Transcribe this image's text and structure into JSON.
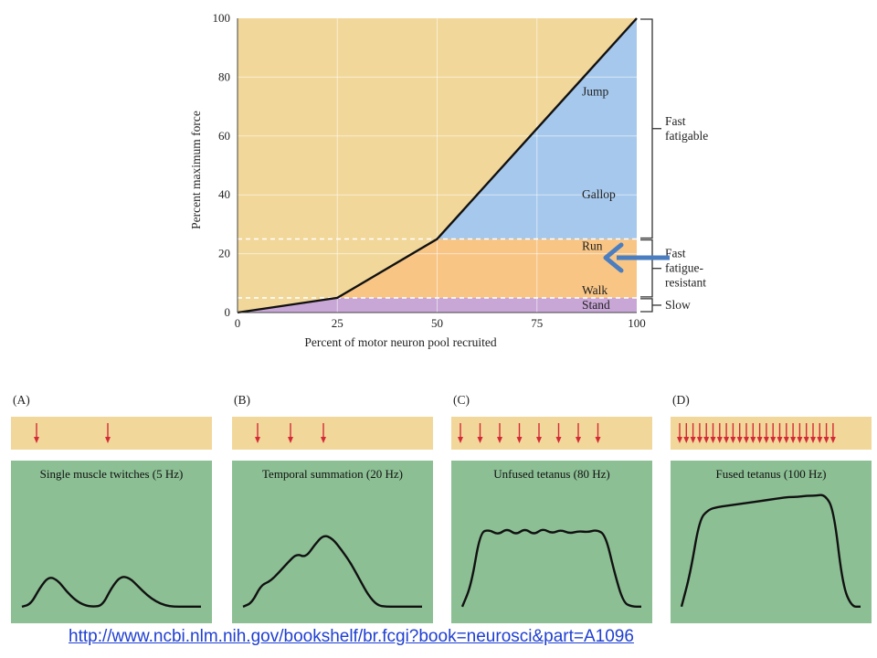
{
  "chart_data": [
    {
      "type": "line",
      "xlabel": "Percent of motor neuron pool recruited",
      "ylabel": "Percent maximum force",
      "xlim": [
        0,
        100
      ],
      "ylim": [
        0,
        100
      ],
      "x_ticks": [
        "0",
        "25",
        "50",
        "75",
        "100"
      ],
      "y_ticks": [
        "0",
        "20",
        "40",
        "60",
        "80",
        "100"
      ],
      "x": [
        0,
        25,
        50,
        100
      ],
      "y": [
        0,
        5,
        25,
        100
      ],
      "grid": true,
      "thresholds": [
        5,
        25
      ],
      "regions": [
        {
          "label": "Stand",
          "y_at": 2.5
        },
        {
          "label": "Walk",
          "y_at": 7.5
        },
        {
          "label": "Run",
          "y_at": 22.5
        },
        {
          "label": "Gallop",
          "y_at": 40
        },
        {
          "label": "Jump",
          "y_at": 75
        }
      ],
      "unit_types": [
        {
          "label": "Slow",
          "range": [
            0,
            5
          ]
        },
        {
          "label": "Fast fatigue-resistant",
          "lines": [
            "Fast",
            "fatigue-",
            "resistant"
          ],
          "range": [
            5,
            25
          ]
        },
        {
          "label": "Fast fatigable",
          "lines": [
            "Fast",
            "fatigable"
          ],
          "range": [
            25,
            100
          ]
        }
      ],
      "colors": {
        "background": "#f2d79a",
        "slow": "#c8a6d6",
        "fatigue_resistant": "#f8c585",
        "fatigable": "#a6c8ec",
        "line": "#111111",
        "arrow": "#4a7ec0"
      }
    },
    {
      "type": "line",
      "panels": [
        {
          "letter": "(A)",
          "title": "Single muscle twitches (5 Hz)",
          "stimuli": 2,
          "x": [
            0,
            5,
            10,
            15,
            20,
            25,
            30,
            35,
            40,
            45,
            50,
            55,
            60,
            65,
            70,
            75,
            80,
            85,
            90,
            95,
            100
          ],
          "y": [
            3,
            5,
            18,
            27,
            24,
            15,
            8,
            4,
            3,
            4,
            18,
            27,
            26,
            19,
            12,
            7,
            4,
            3,
            3,
            3,
            3
          ]
        },
        {
          "letter": "(B)",
          "title": "Temporal summation (20 Hz)",
          "stimuli": 3,
          "x": [
            0,
            5,
            10,
            15,
            20,
            25,
            30,
            35,
            40,
            45,
            50,
            55,
            60,
            65,
            70,
            75,
            80,
            85,
            90,
            95,
            100
          ],
          "y": [
            3,
            6,
            20,
            23,
            30,
            38,
            45,
            42,
            52,
            60,
            57,
            48,
            38,
            25,
            12,
            4,
            3,
            3,
            3,
            3,
            3
          ]
        },
        {
          "letter": "(C)",
          "title": "Unfused tetanus (80 Hz)",
          "stimuli": 8,
          "x": [
            0,
            5,
            10,
            15,
            20,
            25,
            30,
            35,
            40,
            45,
            50,
            55,
            60,
            65,
            70,
            75,
            80,
            85,
            90,
            95,
            100
          ],
          "y": [
            3,
            20,
            62,
            64,
            60,
            65,
            60,
            65,
            60,
            65,
            61,
            64,
            61,
            63,
            62,
            64,
            60,
            30,
            6,
            3,
            3
          ]
        },
        {
          "letter": "(D)",
          "title": "Fused tetanus (100 Hz)",
          "stimuli": 24,
          "x": [
            0,
            5,
            10,
            15,
            20,
            25,
            30,
            35,
            40,
            45,
            50,
            55,
            60,
            65,
            70,
            75,
            80,
            85,
            90,
            95,
            100
          ],
          "y": [
            3,
            30,
            72,
            80,
            82,
            83,
            84,
            85,
            86,
            87,
            88,
            89,
            90,
            90,
            91,
            91,
            92,
            80,
            20,
            3,
            3
          ]
        }
      ],
      "colors": {
        "stim_strip": "#f2d79a",
        "trace_bg": "#8cbf94",
        "stim_arrow": "#d42a37",
        "trace": "#111111"
      }
    }
  ],
  "source_link": "http://www.ncbi.nlm.nih.gov/bookshelf/br.fcgi?book=neurosci&part=A1096"
}
